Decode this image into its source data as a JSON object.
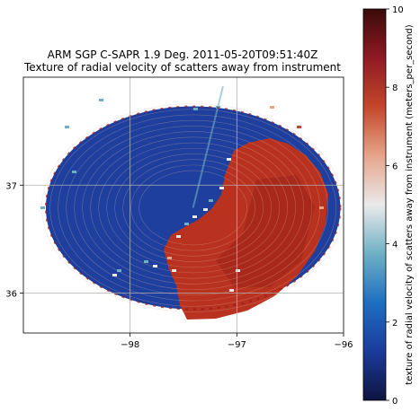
{
  "chart_data": {
    "type": "heatmap",
    "title": "ARM SGP C-SAPR 1.9 Deg. 2011-05-20T09:51:40Z",
    "subtitle": "Texture of radial velocity of scatters away from instrument",
    "xlabel": "",
    "ylabel": "",
    "x_ticks": [
      -98,
      -97,
      -96
    ],
    "x_tick_labels": [
      "−98",
      "−97",
      "−96"
    ],
    "y_ticks": [
      36,
      37
    ],
    "y_tick_labels": [
      "36",
      "37"
    ],
    "xlim": [
      -99.0,
      -96.0
    ],
    "ylim": [
      35.63,
      38.0
    ],
    "grid": true,
    "radar_center": {
      "lon": -97.41,
      "lat": 36.79
    },
    "radar_range": {
      "lon_radius": 1.38,
      "lat_radius": 0.94
    },
    "colorbar": {
      "label": "texture of radial velocity of scatters away from instrument (meters_per_second)",
      "min": 0,
      "max": 10,
      "ticks": [
        0,
        2,
        4,
        6,
        8,
        10
      ],
      "tick_labels": [
        "0",
        "2",
        "4",
        "6",
        "8",
        "10"
      ],
      "colors": [
        "#0f1440",
        "#1a3b9b",
        "#1f6fc1",
        "#6fb0c5",
        "#eaeaea",
        "#e6a48a",
        "#c4472b",
        "#8f1a22",
        "#3a0a0a"
      ]
    },
    "regions": [
      {
        "name": "low texture (west)",
        "value_range": [
          0.5,
          2.0
        ]
      },
      {
        "name": "high texture (east/southeast)",
        "value_range": [
          7.0,
          9.0
        ]
      }
    ]
  }
}
